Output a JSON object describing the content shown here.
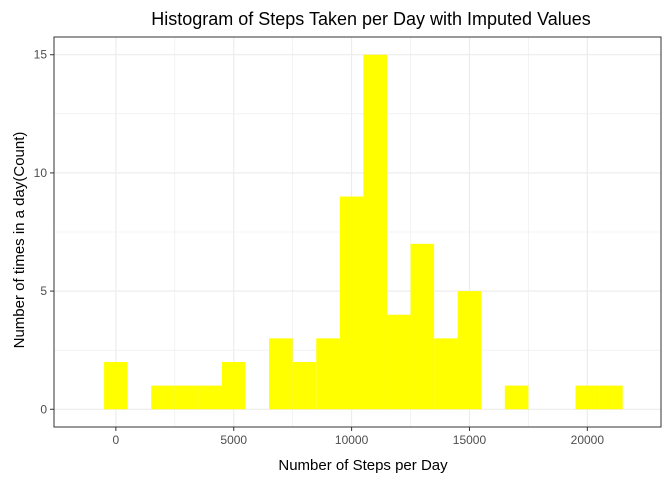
{
  "chart_data": {
    "type": "bar",
    "title": "Histogram of Steps Taken per Day with Imputed Values",
    "xlabel": "Number of Steps per Day",
    "ylabel": "Number of times in a day(Count)",
    "bin_width": 1000,
    "bins": [
      {
        "x": 0,
        "count": 2
      },
      {
        "x": 1000,
        "count": 0
      },
      {
        "x": 2000,
        "count": 1
      },
      {
        "x": 3000,
        "count": 1
      },
      {
        "x": 4000,
        "count": 1
      },
      {
        "x": 5000,
        "count": 2
      },
      {
        "x": 6000,
        "count": 0
      },
      {
        "x": 7000,
        "count": 3
      },
      {
        "x": 8000,
        "count": 2
      },
      {
        "x": 9000,
        "count": 3
      },
      {
        "x": 10000,
        "count": 9
      },
      {
        "x": 11000,
        "count": 15
      },
      {
        "x": 12000,
        "count": 4
      },
      {
        "x": 13000,
        "count": 7
      },
      {
        "x": 14000,
        "count": 3
      },
      {
        "x": 15000,
        "count": 5
      },
      {
        "x": 16000,
        "count": 0
      },
      {
        "x": 17000,
        "count": 1
      },
      {
        "x": 18000,
        "count": 0
      },
      {
        "x": 19000,
        "count": 0
      },
      {
        "x": 20000,
        "count": 1
      },
      {
        "x": 21000,
        "count": 1
      }
    ],
    "xlim": [
      -2625,
      23125
    ],
    "ylim": [
      -0.75,
      15.75
    ],
    "x_ticks": [
      0,
      5000,
      10000,
      15000,
      20000
    ],
    "x_tick_labels": [
      "0",
      "5000",
      "10000",
      "15000",
      "20000"
    ],
    "y_ticks": [
      0,
      5,
      10,
      15
    ],
    "y_tick_labels": [
      "0",
      "5",
      "10",
      "15"
    ],
    "grid": true,
    "bar_color": "#FFFF00",
    "panel_border_color": "#333333",
    "grid_color": "#ebebeb"
  }
}
